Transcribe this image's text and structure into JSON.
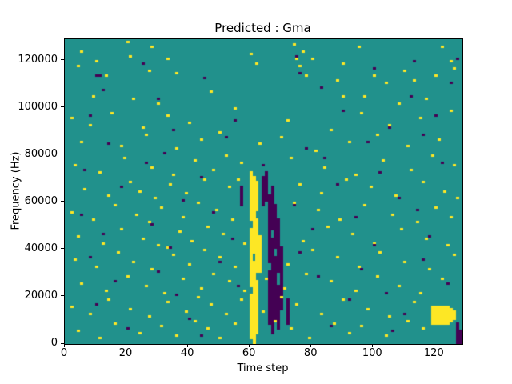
{
  "title": "Predicted : Gma",
  "chart_data": {
    "type": "heatmap",
    "title": "Predicted : Gma",
    "xlabel": "Time step",
    "ylabel": "Frequency (Hz)",
    "x_range": [
      0,
      129
    ],
    "y_range": [
      0,
      129000
    ],
    "xticks": [
      0,
      20,
      40,
      60,
      80,
      100,
      120
    ],
    "yticks": [
      0,
      20000,
      40000,
      60000,
      80000,
      100000,
      120000
    ],
    "cell": {
      "dx": 1,
      "dy": 1000
    },
    "colors": {
      "figure": "#ffffff",
      "background": "#21918c",
      "high": "#fde725",
      "low": "#440154",
      "spine": "#000000"
    },
    "legend": "none",
    "note": "cells given as [time_step, freq_bin]; freq = bin * 1000 Hz; runs given as [time_step, bin_from, bin_to]",
    "yellow_runs": [
      [
        60,
        2,
        20
      ],
      [
        60,
        24,
        48
      ],
      [
        60,
        52,
        72
      ],
      [
        61,
        0,
        34
      ],
      [
        61,
        38,
        70
      ],
      [
        62,
        4,
        26
      ],
      [
        62,
        30,
        52
      ],
      [
        62,
        56,
        68
      ],
      [
        63,
        30,
        45
      ],
      [
        119,
        8,
        15
      ],
      [
        120,
        8,
        15
      ],
      [
        121,
        8,
        15
      ],
      [
        122,
        8,
        15
      ],
      [
        123,
        8,
        15
      ],
      [
        124,
        8,
        15
      ],
      [
        125,
        9,
        14
      ],
      [
        126,
        10,
        13
      ]
    ],
    "purple_runs": [
      [
        64,
        58,
        70
      ],
      [
        65,
        60,
        72
      ],
      [
        66,
        8,
        30
      ],
      [
        66,
        34,
        62
      ],
      [
        67,
        4,
        44
      ],
      [
        67,
        48,
        66
      ],
      [
        68,
        10,
        36
      ],
      [
        68,
        40,
        58
      ],
      [
        69,
        6,
        24
      ],
      [
        69,
        30,
        52
      ],
      [
        70,
        14,
        40
      ],
      [
        57,
        58,
        66
      ],
      [
        72,
        8,
        18
      ],
      [
        127,
        0,
        8
      ],
      [
        128,
        0,
        5
      ]
    ],
    "yellow_cells": [
      [
        4,
        117
      ],
      [
        5,
        123
      ],
      [
        10,
        119
      ],
      [
        13,
        113
      ],
      [
        20,
        127
      ],
      [
        21,
        121
      ],
      [
        27,
        115
      ],
      [
        28,
        125
      ],
      [
        33,
        120
      ],
      [
        36,
        114
      ],
      [
        47,
        106
      ],
      [
        60,
        122
      ],
      [
        62,
        118
      ],
      [
        74,
        126
      ],
      [
        75,
        120
      ],
      [
        76,
        117
      ],
      [
        77,
        123
      ],
      [
        78,
        113
      ],
      [
        80,
        120
      ],
      [
        88,
        111
      ],
      [
        90,
        118
      ],
      [
        95,
        125
      ],
      [
        97,
        104
      ],
      [
        100,
        113
      ],
      [
        104,
        110
      ],
      [
        110,
        115
      ],
      [
        113,
        111
      ],
      [
        120,
        113
      ],
      [
        122,
        125
      ],
      [
        9,
        104
      ],
      [
        22,
        103
      ],
      [
        30,
        101
      ],
      [
        90,
        104
      ],
      [
        108,
        101
      ],
      [
        117,
        103
      ],
      [
        125,
        119
      ],
      [
        126,
        116
      ],
      [
        2,
        95
      ],
      [
        8,
        92
      ],
      [
        15,
        97
      ],
      [
        25,
        91
      ],
      [
        33,
        96
      ],
      [
        40,
        93
      ],
      [
        55,
        99
      ],
      [
        72,
        94
      ],
      [
        86,
        90
      ],
      [
        96,
        97
      ],
      [
        105,
        92
      ],
      [
        115,
        95
      ],
      [
        125,
        98
      ],
      [
        5,
        85
      ],
      [
        18,
        83
      ],
      [
        26,
        88
      ],
      [
        36,
        82
      ],
      [
        44,
        86
      ],
      [
        50,
        89
      ],
      [
        63,
        84
      ],
      [
        70,
        87
      ],
      [
        81,
        81
      ],
      [
        92,
        85
      ],
      [
        101,
        88
      ],
      [
        111,
        83
      ],
      [
        121,
        86
      ],
      [
        3,
        75
      ],
      [
        11,
        72
      ],
      [
        19,
        78
      ],
      [
        28,
        74
      ],
      [
        35,
        71
      ],
      [
        42,
        77
      ],
      [
        48,
        73
      ],
      [
        52,
        79
      ],
      [
        57,
        76
      ],
      [
        73,
        78
      ],
      [
        84,
        74
      ],
      [
        94,
        71
      ],
      [
        103,
        77
      ],
      [
        112,
        73
      ],
      [
        119,
        79
      ],
      [
        126,
        75
      ],
      [
        6,
        65
      ],
      [
        14,
        62
      ],
      [
        21,
        68
      ],
      [
        24,
        64
      ],
      [
        29,
        61
      ],
      [
        34,
        67
      ],
      [
        39,
        63
      ],
      [
        45,
        69
      ],
      [
        53,
        66
      ],
      [
        76,
        67
      ],
      [
        83,
        63
      ],
      [
        91,
        69
      ],
      [
        99,
        66
      ],
      [
        107,
        62
      ],
      [
        116,
        68
      ],
      [
        123,
        64
      ],
      [
        127,
        61
      ],
      [
        56,
        69
      ],
      [
        2,
        55
      ],
      [
        9,
        52
      ],
      [
        16,
        58
      ],
      [
        23,
        54
      ],
      [
        27,
        51
      ],
      [
        31,
        57
      ],
      [
        38,
        53
      ],
      [
        43,
        59
      ],
      [
        49,
        56
      ],
      [
        54,
        52
      ],
      [
        74,
        59
      ],
      [
        82,
        56
      ],
      [
        89,
        52
      ],
      [
        97,
        58
      ],
      [
        106,
        54
      ],
      [
        114,
        51
      ],
      [
        120,
        57
      ],
      [
        125,
        53
      ],
      [
        4,
        45
      ],
      [
        12,
        42
      ],
      [
        18,
        48
      ],
      [
        25,
        44
      ],
      [
        30,
        41
      ],
      [
        37,
        47
      ],
      [
        41,
        43
      ],
      [
        46,
        49
      ],
      [
        51,
        46
      ],
      [
        58,
        42
      ],
      [
        77,
        43
      ],
      [
        85,
        49
      ],
      [
        93,
        46
      ],
      [
        100,
        42
      ],
      [
        109,
        48
      ],
      [
        117,
        44
      ],
      [
        124,
        41
      ],
      [
        33,
        40
      ],
      [
        3,
        35
      ],
      [
        10,
        32
      ],
      [
        17,
        38
      ],
      [
        22,
        34
      ],
      [
        28,
        31
      ],
      [
        35,
        37
      ],
      [
        40,
        33
      ],
      [
        45,
        39
      ],
      [
        50,
        36
      ],
      [
        55,
        32
      ],
      [
        72,
        33
      ],
      [
        80,
        39
      ],
      [
        88,
        36
      ],
      [
        95,
        32
      ],
      [
        102,
        38
      ],
      [
        110,
        34
      ],
      [
        118,
        31
      ],
      [
        126,
        37
      ],
      [
        5,
        25
      ],
      [
        13,
        22
      ],
      [
        20,
        28
      ],
      [
        26,
        24
      ],
      [
        32,
        21
      ],
      [
        38,
        27
      ],
      [
        44,
        23
      ],
      [
        48,
        29
      ],
      [
        53,
        26
      ],
      [
        58,
        22
      ],
      [
        65,
        27
      ],
      [
        71,
        23
      ],
      [
        78,
        29
      ],
      [
        86,
        26
      ],
      [
        94,
        22
      ],
      [
        101,
        28
      ],
      [
        108,
        24
      ],
      [
        115,
        21
      ],
      [
        122,
        27
      ],
      [
        2,
        15
      ],
      [
        8,
        12
      ],
      [
        14,
        18
      ],
      [
        21,
        14
      ],
      [
        27,
        11
      ],
      [
        33,
        17
      ],
      [
        39,
        13
      ],
      [
        43,
        19
      ],
      [
        47,
        16
      ],
      [
        52,
        12
      ],
      [
        57,
        18
      ],
      [
        64,
        13
      ],
      [
        70,
        19
      ],
      [
        75,
        16
      ],
      [
        83,
        12
      ],
      [
        90,
        18
      ],
      [
        98,
        14
      ],
      [
        105,
        11
      ],
      [
        113,
        17
      ],
      [
        4,
        5
      ],
      [
        11,
        2
      ],
      [
        16,
        8
      ],
      [
        24,
        4
      ],
      [
        31,
        7
      ],
      [
        36,
        3
      ],
      [
        42,
        9
      ],
      [
        46,
        6
      ],
      [
        50,
        2
      ],
      [
        55,
        8
      ],
      [
        68,
        9
      ],
      [
        73,
        6
      ],
      [
        79,
        2
      ],
      [
        87,
        8
      ],
      [
        92,
        4
      ],
      [
        96,
        7
      ],
      [
        104,
        3
      ],
      [
        111,
        9
      ],
      [
        116,
        6
      ]
    ],
    "purple_cells": [
      [
        10,
        113
      ],
      [
        11,
        113
      ],
      [
        12,
        107
      ],
      [
        25,
        118
      ],
      [
        30,
        103
      ],
      [
        45,
        112
      ],
      [
        75,
        121
      ],
      [
        76,
        114
      ],
      [
        83,
        108
      ],
      [
        100,
        116
      ],
      [
        112,
        104
      ],
      [
        125,
        110
      ],
      [
        127,
        120
      ],
      [
        113,
        119
      ],
      [
        8,
        96
      ],
      [
        35,
        90
      ],
      [
        55,
        94
      ],
      [
        90,
        98
      ],
      [
        105,
        91
      ],
      [
        120,
        96
      ],
      [
        14,
        84
      ],
      [
        32,
        80
      ],
      [
        52,
        87
      ],
      [
        78,
        82
      ],
      [
        98,
        85
      ],
      [
        116,
        88
      ],
      [
        6,
        73
      ],
      [
        26,
        76
      ],
      [
        44,
        70
      ],
      [
        64,
        75
      ],
      [
        84,
        78
      ],
      [
        102,
        72
      ],
      [
        122,
        76
      ],
      [
        18,
        66
      ],
      [
        38,
        60
      ],
      [
        88,
        67
      ],
      [
        108,
        61
      ],
      [
        5,
        54
      ],
      [
        28,
        50
      ],
      [
        48,
        55
      ],
      [
        74,
        58
      ],
      [
        94,
        53
      ],
      [
        114,
        56
      ],
      [
        12,
        46
      ],
      [
        34,
        40
      ],
      [
        54,
        44
      ],
      [
        80,
        48
      ],
      [
        100,
        41
      ],
      [
        118,
        45
      ],
      [
        8,
        36
      ],
      [
        30,
        30
      ],
      [
        50,
        34
      ],
      [
        76,
        38
      ],
      [
        96,
        31
      ],
      [
        116,
        35
      ],
      [
        16,
        26
      ],
      [
        36,
        20
      ],
      [
        56,
        24
      ],
      [
        82,
        28
      ],
      [
        104,
        21
      ],
      [
        124,
        25
      ],
      [
        10,
        16
      ],
      [
        40,
        10
      ],
      [
        72,
        14
      ],
      [
        92,
        18
      ],
      [
        110,
        12
      ],
      [
        20,
        6
      ],
      [
        44,
        3
      ],
      [
        86,
        7
      ],
      [
        106,
        5
      ]
    ]
  }
}
